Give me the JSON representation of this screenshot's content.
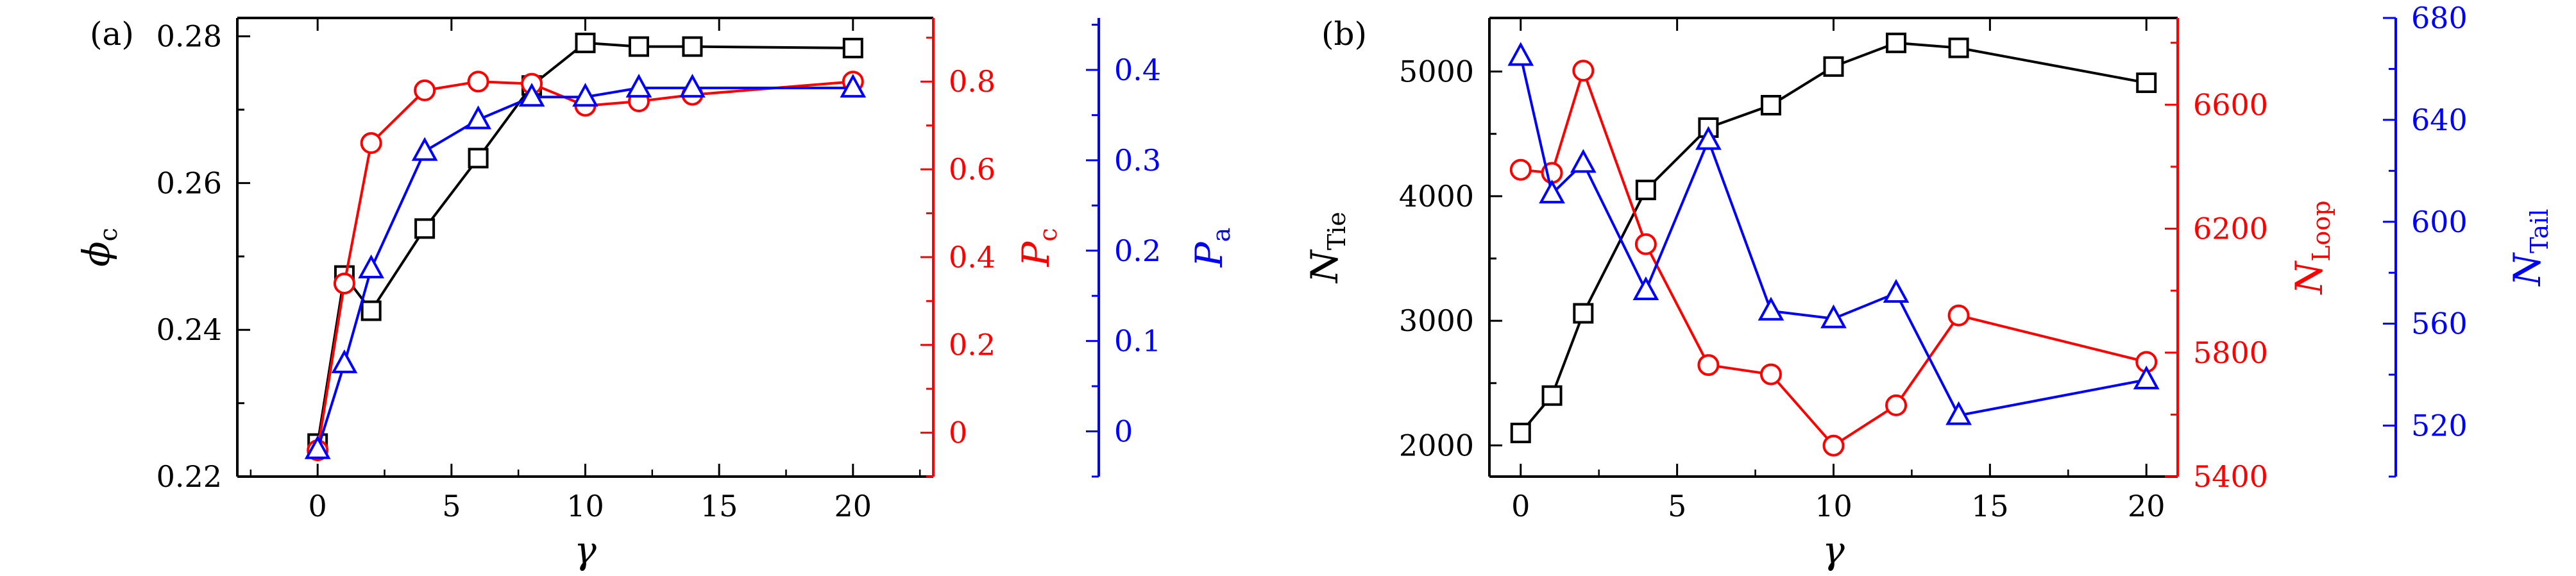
{
  "colors": {
    "black": "#000000",
    "red": "#ff0000",
    "blue": "#0000ff"
  },
  "chart_data": [
    {
      "type": "line",
      "panel_label": "(a)",
      "xlabel": "γ",
      "xlim": [
        -3,
        23
      ],
      "x_ticks": [
        "0",
        "5",
        "10",
        "15",
        "20"
      ],
      "axes": {
        "left": {
          "label_main": "ϕ",
          "label_sub": "c",
          "ylim": [
            0.22,
            0.2825
          ],
          "ticks": [
            "0.22",
            "0.24",
            "0.26",
            "0.28"
          ],
          "color": "#000000"
        },
        "right1": {
          "label_main": "P",
          "label_sub": "c",
          "ylim": [
            -0.1,
            0.945
          ],
          "ticks": [
            "0",
            "0.2",
            "0.4",
            "0.6",
            "0.8"
          ],
          "color": "#ff0000"
        },
        "right2": {
          "label_main": "P",
          "label_sub": "a",
          "ylim": [
            -0.05,
            0.4575
          ],
          "ticks": [
            "0",
            "0.1",
            "0.2",
            "0.3",
            "0.4"
          ],
          "color": "#0000ff"
        }
      },
      "series": [
        {
          "axis": "left",
          "color": "#000000",
          "marker": "square",
          "x": [
            0,
            1,
            2,
            4,
            6,
            8,
            10,
            12,
            14,
            20
          ],
          "y": [
            0.2245,
            0.2474,
            0.2426,
            0.2538,
            0.2634,
            0.2733,
            0.2791,
            0.2786,
            0.2786,
            0.2784
          ]
        },
        {
          "axis": "right1",
          "color": "#ff0000",
          "marker": "circle",
          "x": [
            0,
            1,
            2,
            4,
            6,
            8,
            10,
            12,
            14,
            20
          ],
          "y": [
            -0.04,
            0.34,
            0.66,
            0.78,
            0.8,
            0.795,
            0.745,
            0.755,
            0.77,
            0.8
          ]
        },
        {
          "axis": "right2",
          "color": "#0000ff",
          "marker": "triangle",
          "x": [
            0,
            1,
            2,
            4,
            6,
            8,
            10,
            12,
            14,
            20
          ],
          "y": [
            -0.02,
            0.075,
            0.18,
            0.31,
            0.345,
            0.37,
            0.37,
            0.38,
            0.38,
            0.38
          ]
        }
      ]
    },
    {
      "type": "line",
      "panel_label": "(b)",
      "xlabel": "γ",
      "xlim": [
        -1,
        21
      ],
      "x_ticks": [
        "0",
        "5",
        "10",
        "15",
        "20"
      ],
      "axes": {
        "left": {
          "label_main": "N",
          "label_sub": "Tie",
          "ylim": [
            1750,
            5430
          ],
          "ticks": [
            "2000",
            "3000",
            "4000",
            "5000"
          ],
          "color": "#000000"
        },
        "right1": {
          "label_main": "N",
          "label_sub": "Loop",
          "ylim": [
            5400,
            6880
          ],
          "ticks": [
            "5400",
            "5800",
            "6200",
            "6600"
          ],
          "color": "#ff0000"
        },
        "right2": {
          "label_main": "N",
          "label_sub": "Tail",
          "ylim": [
            500,
            680
          ],
          "ticks": [
            "520",
            "560",
            "600",
            "640",
            "680"
          ],
          "color": "#0000ff"
        }
      },
      "series": [
        {
          "axis": "left",
          "color": "#000000",
          "marker": "square",
          "x": [
            0,
            1,
            2,
            4,
            6,
            8,
            10,
            12,
            14,
            20
          ],
          "y": [
            2100,
            2400,
            3060,
            4050,
            4550,
            4730,
            5040,
            5230,
            5190,
            4910
          ]
        },
        {
          "axis": "right1",
          "color": "#ff0000",
          "marker": "circle",
          "x": [
            0,
            1,
            2,
            4,
            6,
            8,
            10,
            12,
            14,
            20
          ],
          "y": [
            6390,
            6380,
            6710,
            6150,
            5760,
            5730,
            5500,
            5630,
            5920,
            5770
          ]
        },
        {
          "axis": "right2",
          "color": "#0000ff",
          "marker": "triangle",
          "x": [
            0,
            1,
            2,
            4,
            6,
            8,
            10,
            12,
            14,
            20
          ],
          "y": [
            665,
            611,
            623,
            573,
            632,
            565,
            562,
            572,
            524,
            538
          ]
        }
      ]
    }
  ]
}
